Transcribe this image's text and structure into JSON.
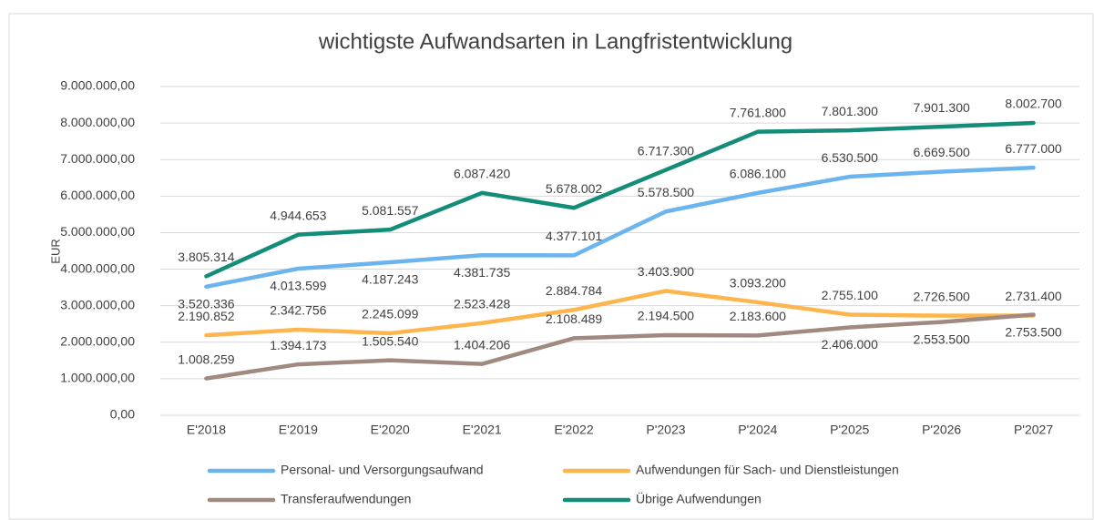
{
  "chart_data": {
    "type": "line",
    "title": "wichtigste Aufwandsarten in Langfristentwicklung",
    "y_label": "EUR",
    "categories": [
      "E'2018",
      "E'2019",
      "E'2020",
      "E'2021",
      "E'2022",
      "P'2023",
      "P'2024",
      "P'2025",
      "P'2026",
      "P'2027"
    ],
    "series": [
      {
        "name": "Personal- und Versorgungsaufwand",
        "color": "#6cb4ee",
        "values": [
          3520336,
          4013599,
          4187243,
          4381735,
          4377101,
          5578500,
          6086100,
          6530500,
          6669500,
          6777000
        ],
        "value_labels": [
          "3.520.336",
          "4.013.599",
          "4.187.243",
          "4.381.735",
          "4.377.101",
          "5.578.500",
          "6.086.100",
          "6.530.500",
          "6.669.500",
          "6.777.000"
        ]
      },
      {
        "name": "Aufwendungen für Sach- und Dienstleistungen",
        "color": "#fdb54e",
        "values": [
          2190852,
          2342756,
          2245099,
          2523428,
          2884784,
          3403900,
          3093200,
          2755100,
          2726500,
          2731400
        ],
        "value_labels": [
          "2.190.852",
          "2.342.756",
          "2.245.099",
          "2.523.428",
          "2.884.784",
          "3.403.900",
          "3.093.200",
          "2.755.100",
          "2.726.500",
          "2.731.400"
        ]
      },
      {
        "name": "Transferaufwendungen",
        "color": "#a08a80",
        "values": [
          1008259,
          1394173,
          1505540,
          1404206,
          2108489,
          2194500,
          2183600,
          2406000,
          2553500,
          2753500
        ],
        "value_labels": [
          "1.008.259",
          "1.394.173",
          "1.505.540",
          "1.404.206",
          "2.108.489",
          "2.194.500",
          "2.183.600",
          "2.406.000",
          "2.553.500",
          "2.753.500"
        ]
      },
      {
        "name": "Übrige Aufwendungen",
        "color": "#138c78",
        "values": [
          3805314,
          4944653,
          5081557,
          6087420,
          5678002,
          6717300,
          7761800,
          7801300,
          7901300,
          8002700
        ],
        "value_labels": [
          "3.805.314",
          "4.944.653",
          "5.081.557",
          "6.087.420",
          "5.678.002",
          "6.717.300",
          "7.761.800",
          "7.801.300",
          "7.901.300",
          "8.002.700"
        ]
      }
    ],
    "ylim": [
      0,
      9000000
    ],
    "yticks": [
      {
        "value": 0,
        "label": "0,00"
      },
      {
        "value": 1000000,
        "label": "1.000.000,00"
      },
      {
        "value": 2000000,
        "label": "2.000.000,00"
      },
      {
        "value": 3000000,
        "label": "3.000.000,00"
      },
      {
        "value": 4000000,
        "label": "4.000.000,00"
      },
      {
        "value": 5000000,
        "label": "5.000.000,00"
      },
      {
        "value": 6000000,
        "label": "6.000.000,00"
      },
      {
        "value": 7000000,
        "label": "7.000.000,00"
      },
      {
        "value": 8000000,
        "label": "8.000.000,00"
      },
      {
        "value": 9000000,
        "label": "9.000.000,00"
      }
    ],
    "grid": true,
    "legend": "bottom"
  }
}
